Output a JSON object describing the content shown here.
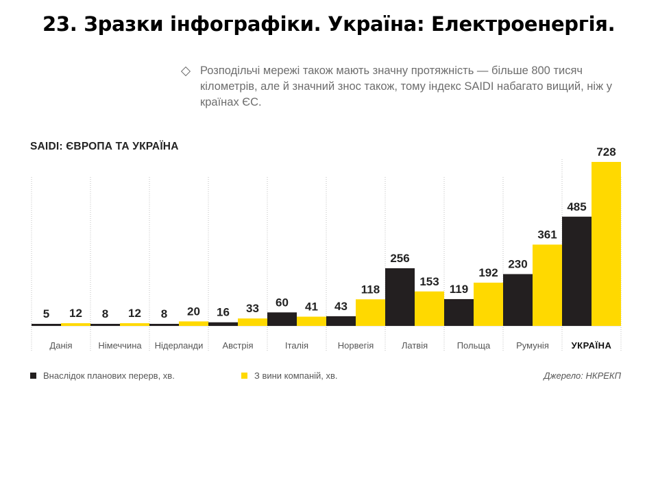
{
  "slide_title": "23. Зразки інфографіки. Україна: Електроенергія.",
  "note": {
    "icon": "diamond-outline-icon",
    "text": "Розподільчі мережі також мають значну протяжність — більше 800 тисяч кілометрів, але й значний знос також, тому індекс SAIDI набагато вищий, ніж у країнах ЄС."
  },
  "chart_data": {
    "type": "bar",
    "title": "SAIDI: ЄВРОПА ТА УКРАЇНА",
    "categories": [
      "Данія",
      "Німеччина",
      "Нідерланди",
      "Австрія",
      "Італія",
      "Норвегія",
      "Латвія",
      "Польща",
      "Румунія",
      "УКРАЇНА"
    ],
    "series": [
      {
        "name": "Внаслідок планових перерв, хв.",
        "color": "#231f20",
        "values": [
          5,
          8,
          8,
          16,
          60,
          43,
          256,
          119,
          230,
          485
        ]
      },
      {
        "name": "З вини компаній, хв.",
        "color": "#ffd900",
        "values": [
          12,
          12,
          20,
          33,
          41,
          118,
          153,
          192,
          361,
          728
        ]
      }
    ],
    "ylim": [
      0,
      728
    ],
    "grid": true,
    "legend_position": "bottom-left",
    "highlight_category": "УКРАЇНА"
  },
  "source": "Джерело: НКРЕКП"
}
